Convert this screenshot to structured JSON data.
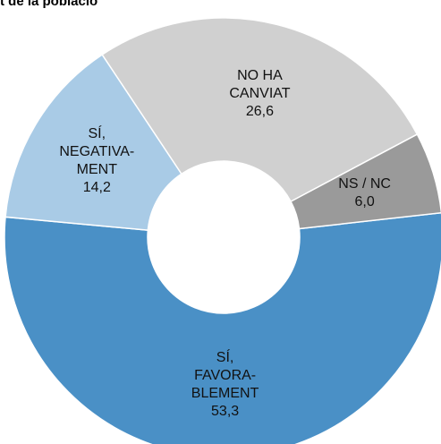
{
  "chart_data": {
    "type": "donut",
    "title": "t de la poblacio",
    "categories": [
      "SÍ,\nFAVORA-\nBLEMENT",
      "SÍ,\nNEGATIVA-\nMENT",
      "NO HA\nCANVIAT",
      "NS / NC"
    ],
    "values": [
      53.3,
      14.2,
      26.6,
      6.0
    ],
    "value_labels": [
      "53,3",
      "14,2",
      "26,6",
      "6,0"
    ],
    "colors": [
      "#4a90c6",
      "#a9cbe6",
      "#d0d0d0",
      "#9a9a9a"
    ]
  }
}
